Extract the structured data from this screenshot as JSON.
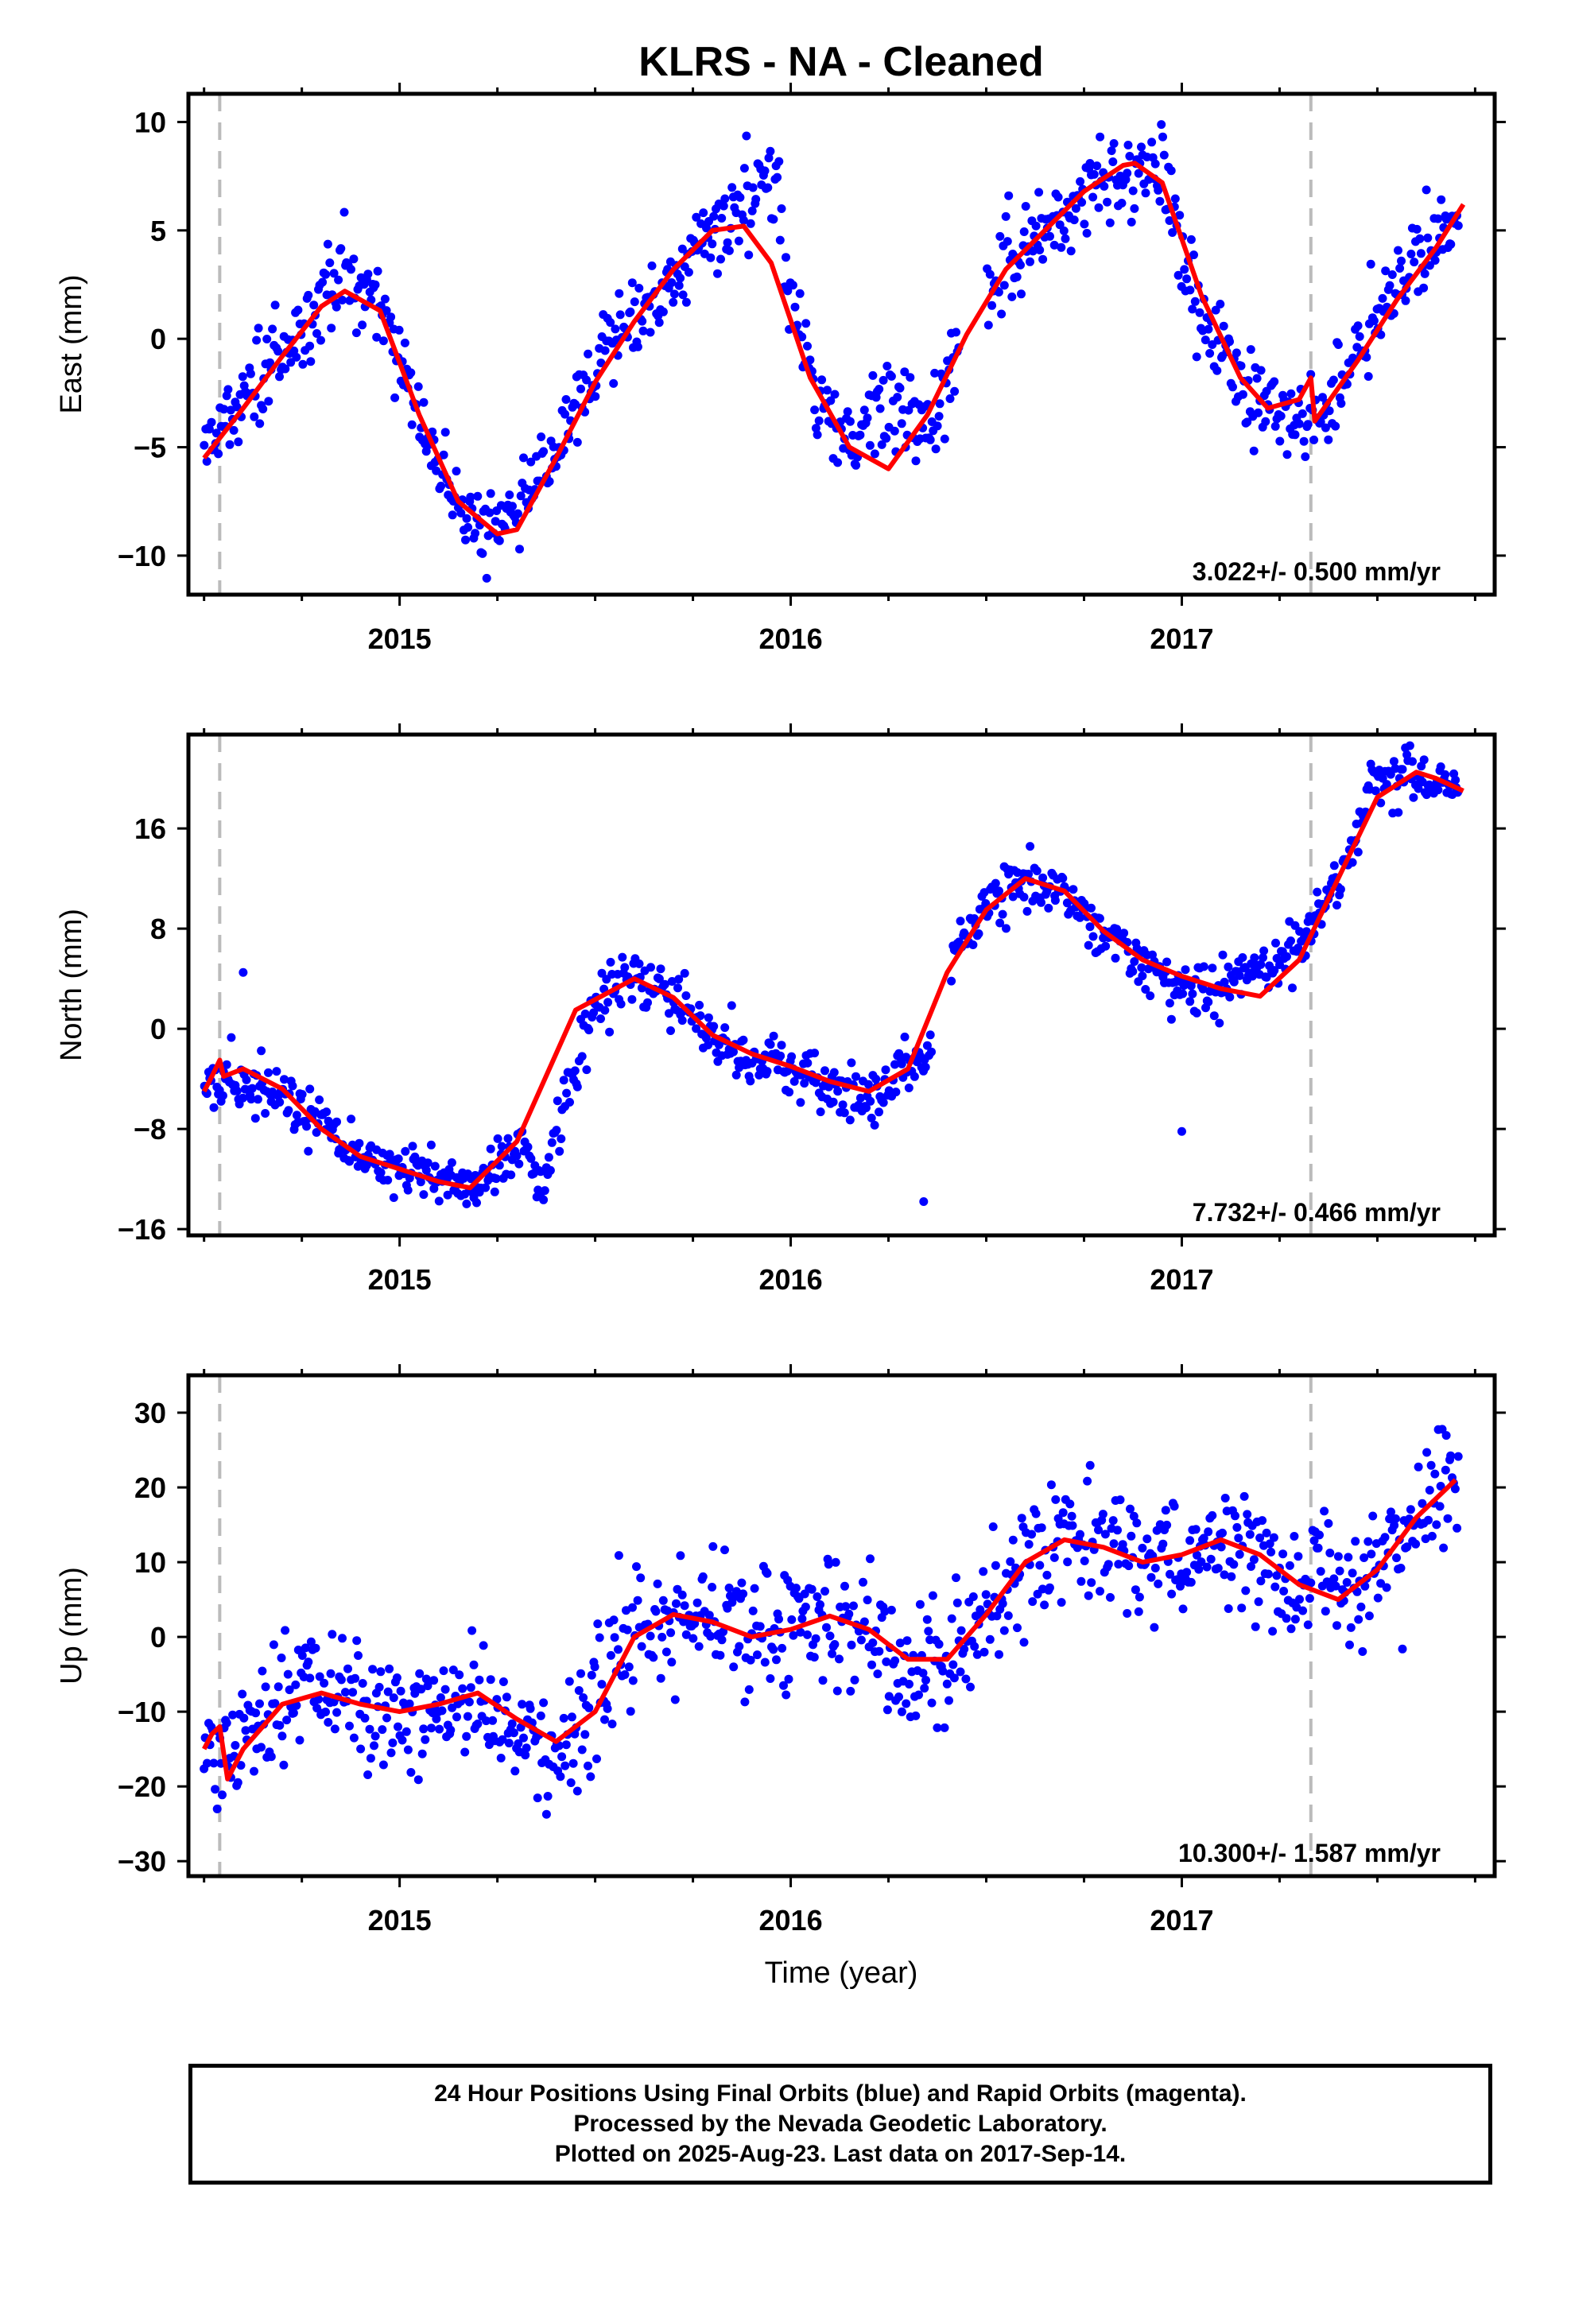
{
  "title": "KLRS  - NA - Cleaned",
  "x_axis_label": "Time (year)",
  "footer_lines": [
    "24 Hour Positions Using Final Orbits (blue) and Rapid Orbits (magenta).",
    "Processed by the Nevada Geodetic Laboratory.",
    "Plotted on 2025-Aug-23. Last data on 2017-Sep-14."
  ],
  "colors": {
    "points": "#0000ff",
    "model": "#ff0000",
    "equipment_change": "#bbbbbb"
  },
  "chart_data": [
    {
      "type": "scatter",
      "panel": "east",
      "ylabel": "East (mm)",
      "rate_label": "3.022+/- 0.500 mm/yr",
      "xlim": [
        2014.46,
        2017.8
      ],
      "ylim": [
        -11.8,
        11.3
      ],
      "xticks": [
        "2015",
        "2016",
        "2017"
      ],
      "yticks": [
        "10",
        "5",
        "0",
        "−5",
        "−10"
      ],
      "ytick_values": [
        10,
        5,
        0,
        -5,
        -10
      ],
      "equipment_change_dates": [
        2014.54,
        2017.33
      ],
      "model_curve": {
        "x": [
          2014.5,
          2014.6,
          2014.7,
          2014.8,
          2014.86,
          2014.95,
          2015.05,
          2015.15,
          2015.25,
          2015.3,
          2015.4,
          2015.5,
          2015.6,
          2015.7,
          2015.8,
          2015.88,
          2015.95,
          2016.05,
          2016.15,
          2016.25,
          2016.35,
          2016.45,
          2016.55,
          2016.65,
          2016.75,
          2016.85,
          2016.88,
          2016.95,
          2017.05,
          2017.15,
          2017.22,
          2017.3,
          2017.33,
          2017.34,
          2017.45,
          2017.55,
          2017.65,
          2017.72
        ],
        "y": [
          -5.5,
          -3.2,
          -0.8,
          1.5,
          2.2,
          1.3,
          -3.5,
          -7.5,
          -9.0,
          -8.8,
          -5.5,
          -2.0,
          0.8,
          3.2,
          5.0,
          5.2,
          3.5,
          -1.8,
          -5.0,
          -6.0,
          -3.5,
          0.2,
          3.2,
          5.0,
          6.8,
          8.0,
          8.1,
          7.2,
          2.0,
          -1.8,
          -3.2,
          -2.8,
          -1.8,
          -3.8,
          -1.0,
          1.8,
          4.2,
          6.2
        ]
      },
      "points": {
        "anchors_x": [
          2014.5,
          2014.6,
          2014.7,
          2014.8,
          2014.86,
          2014.95,
          2015.05,
          2015.15,
          2015.25,
          2015.3,
          2015.4,
          2015.5,
          2015.6,
          2015.7,
          2015.8,
          2015.88,
          2015.95,
          2016.05,
          2016.15,
          2016.25,
          2016.35,
          2016.45,
          2016.55,
          2016.65,
          2016.75,
          2016.85,
          2016.88,
          2016.95,
          2017.05,
          2017.15,
          2017.22,
          2017.3,
          2017.33,
          2017.34,
          2017.45,
          2017.55,
          2017.65,
          2017.72
        ],
        "anchors_y": [
          -5.0,
          -3.0,
          -0.5,
          1.5,
          3.5,
          1.5,
          -3.5,
          -7.5,
          -9.5,
          -7.5,
          -5.0,
          -1.5,
          1.2,
          3.0,
          5.2,
          6.0,
          6.5,
          -2.0,
          -4.5,
          -3.0,
          -4.0,
          0.2,
          3.5,
          5.0,
          6.5,
          7.5,
          8.0,
          7.8,
          1.0,
          -2.5,
          -3.5,
          -3.5,
          -3.0,
          -4.0,
          -0.5,
          2.5,
          4.5,
          6.5
        ],
        "spread": 1.0,
        "count": 900,
        "seed": 11,
        "gap": [
          2016.42,
          2016.5
        ]
      }
    },
    {
      "type": "scatter",
      "panel": "north",
      "ylabel": "North (mm)",
      "rate_label": "7.732+/- 0.466 mm/yr",
      "xlim": [
        2014.46,
        2017.8
      ],
      "ylim": [
        -16.5,
        23.5
      ],
      "xticks": [
        "2015",
        "2016",
        "2017"
      ],
      "yticks": [
        "16",
        "8",
        "0",
        "−8",
        "−16"
      ],
      "ytick_values": [
        16,
        8,
        0,
        -8,
        -16
      ],
      "equipment_change_dates": [
        2014.54,
        2017.33
      ],
      "model_curve": {
        "x": [
          2014.5,
          2014.52,
          2014.54,
          2014.55,
          2014.6,
          2014.7,
          2014.8,
          2014.9,
          2015.0,
          2015.1,
          2015.18,
          2015.3,
          2015.45,
          2015.6,
          2015.7,
          2015.8,
          2015.9,
          2016.0,
          2016.1,
          2016.2,
          2016.3,
          2016.4,
          2016.5,
          2016.6,
          2016.7,
          2016.8,
          2016.9,
          2017.0,
          2017.1,
          2017.2,
          2017.3,
          2017.4,
          2017.5,
          2017.6,
          2017.65,
          2017.72
        ],
        "y": [
          -5.0,
          -3.8,
          -2.5,
          -3.8,
          -3.2,
          -4.8,
          -8.0,
          -10.2,
          -11.2,
          -12.2,
          -12.7,
          -9.0,
          1.5,
          4.0,
          2.5,
          -0.5,
          -2.0,
          -3.0,
          -4.2,
          -5.0,
          -3.2,
          4.5,
          9.5,
          12.0,
          11.0,
          7.8,
          5.5,
          4.2,
          3.2,
          2.6,
          5.5,
          12.0,
          18.5,
          20.5,
          20.0,
          19.0
        ]
      },
      "points": {
        "anchors_x": [
          2014.5,
          2014.6,
          2014.7,
          2014.8,
          2014.9,
          2015.0,
          2015.1,
          2015.2,
          2015.3,
          2015.36,
          2015.42,
          2015.5,
          2015.6,
          2015.7,
          2015.8,
          2015.9,
          2016.0,
          2016.1,
          2016.2,
          2016.3,
          2016.38,
          2016.42,
          2016.5,
          2016.6,
          2016.7,
          2016.8,
          2016.9,
          2017.0,
          2017.1,
          2017.2,
          2017.3,
          2017.4,
          2017.5,
          2017.6,
          2017.65,
          2017.72
        ],
        "anchors_y": [
          -4.5,
          -4.0,
          -5.0,
          -7.5,
          -10.0,
          -11.0,
          -12.5,
          -12.5,
          -9.0,
          -12.0,
          -6.0,
          2.0,
          4.5,
          2.5,
          -1.0,
          -2.5,
          -3.0,
          -4.5,
          -5.5,
          -3.0,
          -1.5,
          6.0,
          10.5,
          12.0,
          11.0,
          7.5,
          5.5,
          3.5,
          3.5,
          4.5,
          6.0,
          12.0,
          20.0,
          20.5,
          19.5,
          19.0
        ]
      },
      "spread_note": "",
      "points_extra": [
        [
          2014.6,
          4.5
        ],
        [
          2016.34,
          -13.8
        ],
        [
          2017.0,
          -8.2
        ]
      ]
    },
    {
      "type": "scatter",
      "panel": "up",
      "ylabel": "Up (mm)",
      "rate_label": "10.300+/- 1.587 mm/yr",
      "xlim": [
        2014.46,
        2017.8
      ],
      "ylim": [
        -32,
        35
      ],
      "xticks": [
        "2015",
        "2016",
        "2017"
      ],
      "yticks": [
        "30",
        "20",
        "10",
        "0",
        "−10",
        "−20",
        "−30"
      ],
      "ytick_values": [
        30,
        20,
        10,
        0,
        -10,
        -20,
        -30
      ],
      "equipment_change_dates": [
        2014.54,
        2017.33
      ],
      "model_curve": {
        "x": [
          2014.5,
          2014.52,
          2014.54,
          2014.56,
          2014.6,
          2014.7,
          2014.8,
          2014.9,
          2015.0,
          2015.1,
          2015.2,
          2015.3,
          2015.4,
          2015.5,
          2015.6,
          2015.7,
          2015.8,
          2015.9,
          2016.0,
          2016.1,
          2016.2,
          2016.3,
          2016.4,
          2016.5,
          2016.6,
          2016.7,
          2016.8,
          2016.9,
          2017.0,
          2017.1,
          2017.2,
          2017.3,
          2017.4,
          2017.5,
          2017.6,
          2017.7
        ],
        "y": [
          -15,
          -13,
          -12,
          -19,
          -15,
          -9,
          -7.5,
          -9,
          -10,
          -9,
          -7.5,
          -11,
          -14,
          -10,
          0,
          3,
          2,
          0,
          1,
          2.8,
          1,
          -3,
          -3,
          3,
          10,
          13,
          12,
          10,
          11,
          13,
          11,
          7,
          5,
          9,
          16,
          21
        ]
      },
      "points": {
        "anchors_x": [
          2014.5,
          2014.6,
          2014.7,
          2014.8,
          2014.9,
          2015.0,
          2015.1,
          2015.2,
          2015.3,
          2015.4,
          2015.5,
          2015.6,
          2015.7,
          2015.8,
          2015.9,
          2016.0,
          2016.1,
          2016.2,
          2016.3,
          2016.4,
          2016.5,
          2016.6,
          2016.7,
          2016.8,
          2016.9,
          2017.0,
          2017.1,
          2017.2,
          2017.3,
          2017.4,
          2017.5,
          2017.6,
          2017.7
        ],
        "anchors_y": [
          -15,
          -14,
          -9,
          -7,
          -9,
          -11,
          -9,
          -9,
          -12,
          -16,
          -9,
          0,
          3,
          2,
          0,
          1,
          3,
          1,
          -3,
          -4,
          3,
          10,
          13,
          13,
          10,
          11,
          13,
          11,
          7,
          6,
          9,
          16,
          22
        ]
      }
    }
  ]
}
